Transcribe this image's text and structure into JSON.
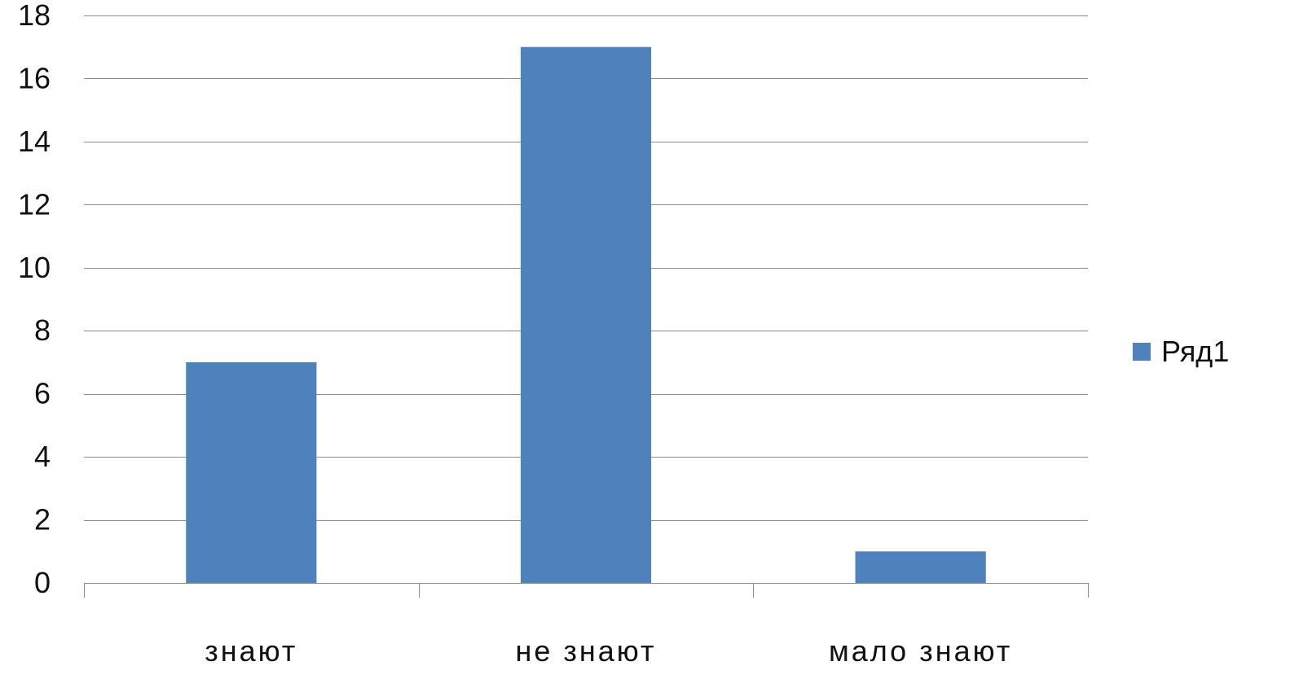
{
  "chart_data": {
    "type": "bar",
    "categories": [
      "знают",
      "не знают",
      "мало знают"
    ],
    "series": [
      {
        "name": "Ряд1",
        "values": [
          7,
          17,
          1
        ],
        "color": "#4f81bd"
      }
    ],
    "title": "",
    "xlabel": "",
    "ylabel": "",
    "ylim": [
      0,
      18
    ],
    "yticks": [
      0,
      2,
      4,
      6,
      8,
      10,
      12,
      14,
      16,
      18
    ],
    "grid": true,
    "legend": "right"
  }
}
